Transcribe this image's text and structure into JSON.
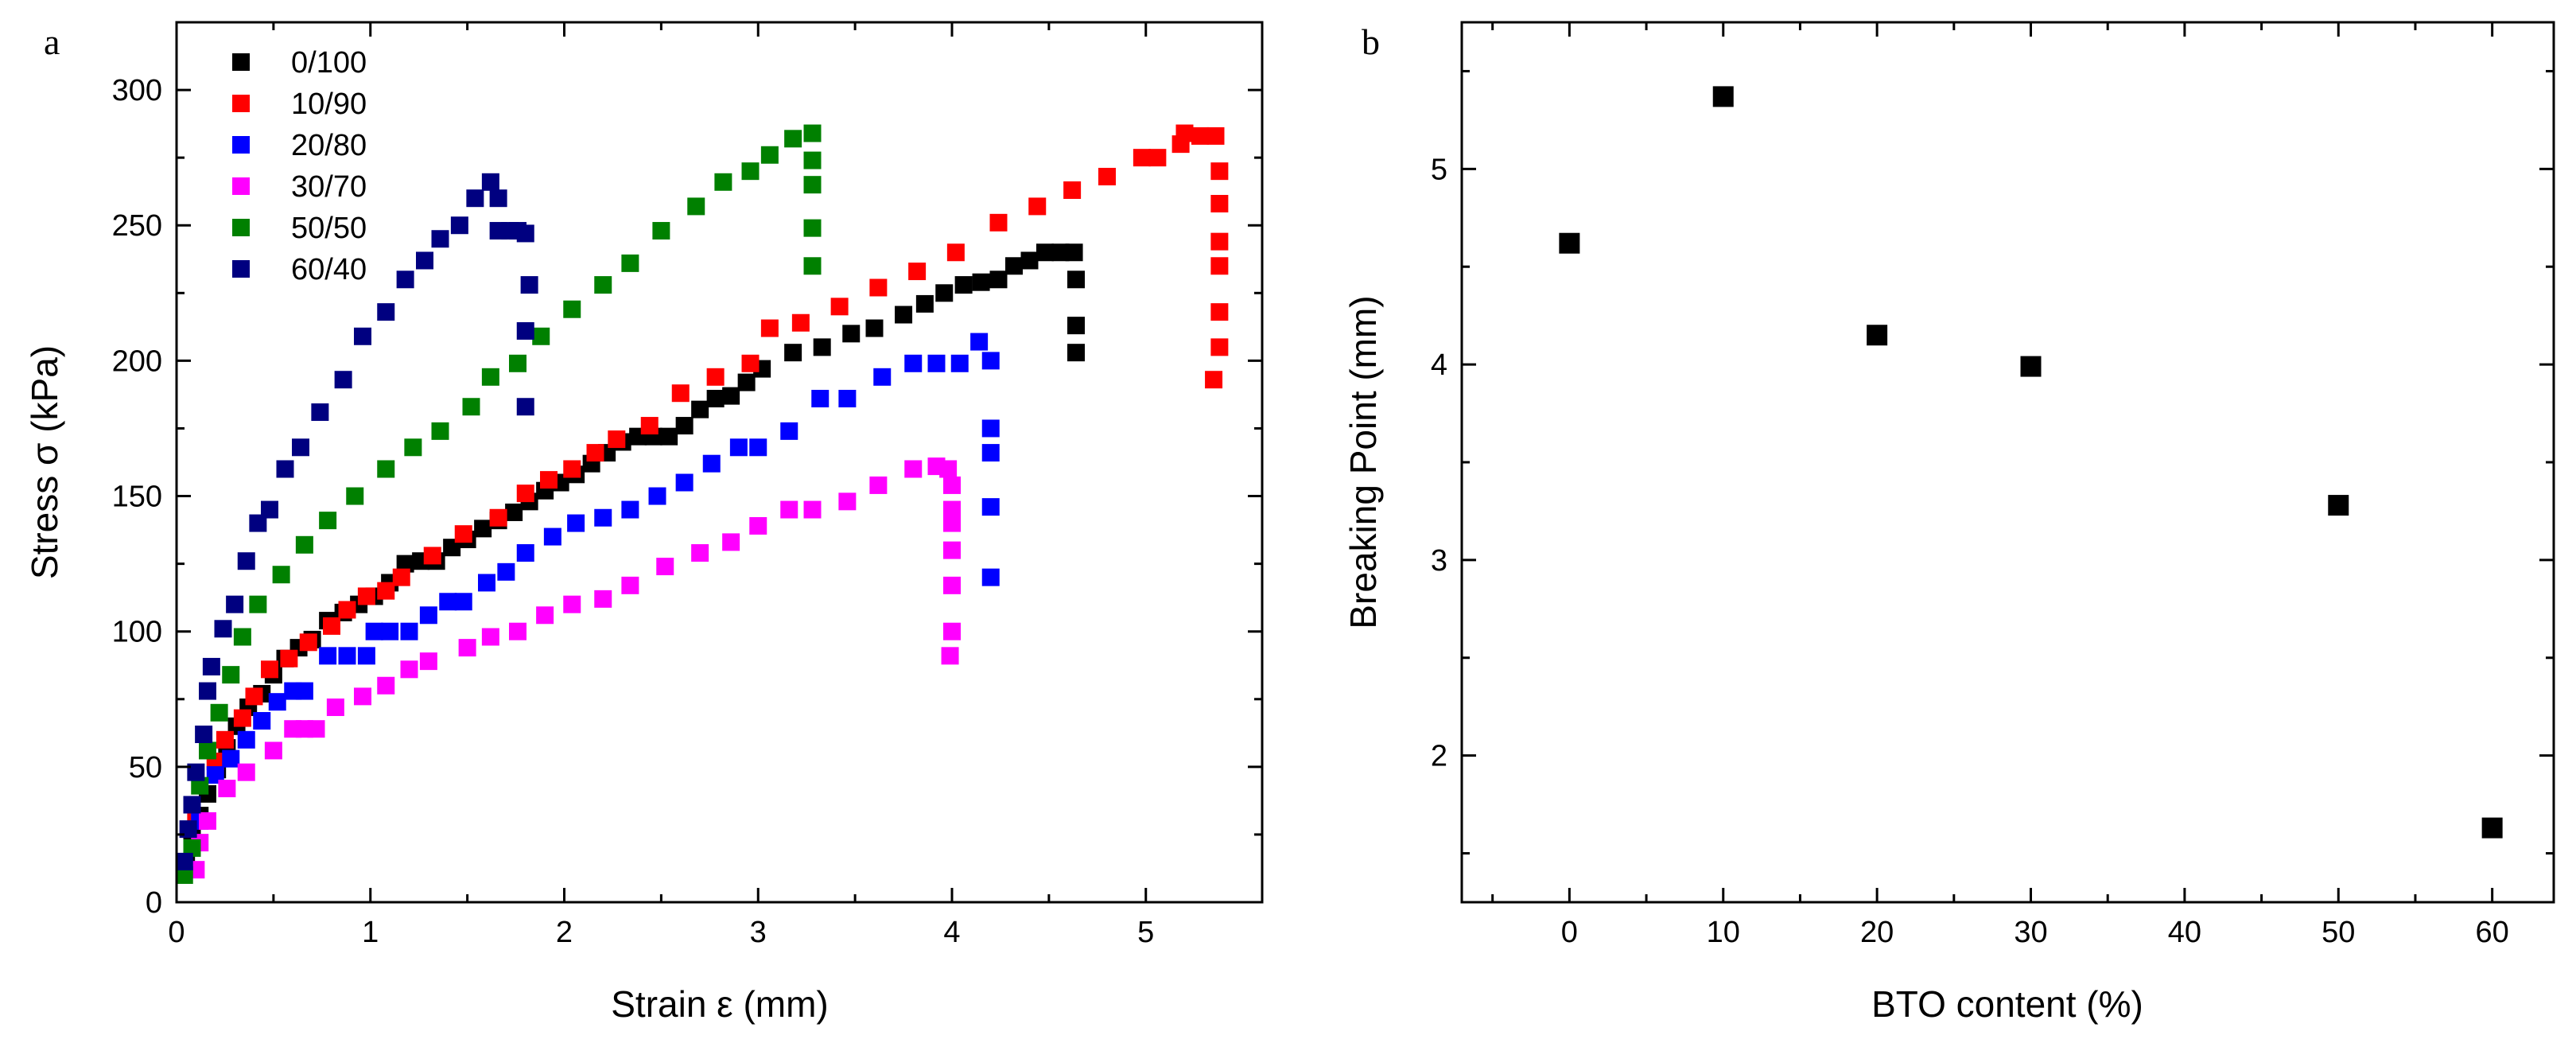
{
  "chart_data": [
    {
      "type": "scatter",
      "panel_label": "a",
      "title": "",
      "xlabel": "Strain ε (mm)",
      "ylabel": "Stress σ (kPa)",
      "xlim": [
        0,
        5.6
      ],
      "ylim": [
        0,
        325
      ],
      "xticks": [
        0,
        1,
        2,
        3,
        4,
        5
      ],
      "yticks": [
        0,
        50,
        100,
        150,
        200,
        250,
        300
      ],
      "legend_position": "top-left",
      "series": [
        {
          "name": "0/100",
          "color": "#000000",
          "points": [
            [
              0.05,
              15
            ],
            [
              0.08,
              24
            ],
            [
              0.12,
              32
            ],
            [
              0.16,
              40
            ],
            [
              0.21,
              49
            ],
            [
              0.26,
              57
            ],
            [
              0.31,
              65
            ],
            [
              0.37,
              72
            ],
            [
              0.44,
              77
            ],
            [
              0.5,
              84
            ],
            [
              0.56,
              90
            ],
            [
              0.63,
              94
            ],
            [
              0.7,
              97
            ],
            [
              0.78,
              104
            ],
            [
              0.86,
              107
            ],
            [
              0.94,
              110
            ],
            [
              1.02,
              113
            ],
            [
              1.1,
              118
            ],
            [
              1.18,
              125
            ],
            [
              1.26,
              126
            ],
            [
              1.34,
              126
            ],
            [
              1.42,
              131
            ],
            [
              1.5,
              134
            ],
            [
              1.58,
              138
            ],
            [
              1.66,
              141
            ],
            [
              1.74,
              144
            ],
            [
              1.82,
              148
            ],
            [
              1.9,
              152
            ],
            [
              1.98,
              155
            ],
            [
              2.06,
              158
            ],
            [
              2.14,
              162
            ],
            [
              2.22,
              166
            ],
            [
              2.3,
              170
            ],
            [
              2.38,
              172
            ],
            [
              2.46,
              172
            ],
            [
              2.54,
              172
            ],
            [
              2.62,
              176
            ],
            [
              2.7,
              182
            ],
            [
              2.78,
              186
            ],
            [
              2.86,
              187
            ],
            [
              2.94,
              192
            ],
            [
              3.02,
              197
            ],
            [
              3.18,
              203
            ],
            [
              3.33,
              205
            ],
            [
              3.48,
              210
            ],
            [
              3.6,
              212
            ],
            [
              3.75,
              217
            ],
            [
              3.86,
              221
            ],
            [
              3.96,
              225
            ],
            [
              4.06,
              228
            ],
            [
              4.15,
              229
            ],
            [
              4.24,
              230
            ],
            [
              4.32,
              235
            ],
            [
              4.4,
              237
            ],
            [
              4.48,
              240
            ],
            [
              4.56,
              240
            ],
            [
              4.63,
              240
            ],
            [
              4.64,
              230
            ],
            [
              4.64,
              213
            ],
            [
              4.64,
              203
            ]
          ]
        },
        {
          "name": "10/90",
          "color": "#ff0000",
          "points": [
            [
              0.1,
              30
            ],
            [
              0.2,
              52
            ],
            [
              0.25,
              60
            ],
            [
              0.34,
              68
            ],
            [
              0.4,
              76
            ],
            [
              0.48,
              86
            ],
            [
              0.58,
              90
            ],
            [
              0.68,
              96
            ],
            [
              0.8,
              102
            ],
            [
              0.88,
              108
            ],
            [
              0.98,
              113
            ],
            [
              1.08,
              115
            ],
            [
              1.16,
              120
            ],
            [
              1.32,
              128
            ],
            [
              1.48,
              136
            ],
            [
              1.66,
              142
            ],
            [
              1.8,
              151
            ],
            [
              1.92,
              156
            ],
            [
              2.04,
              160
            ],
            [
              2.16,
              166
            ],
            [
              2.27,
              171
            ],
            [
              2.44,
              176
            ],
            [
              2.6,
              188
            ],
            [
              2.78,
              194
            ],
            [
              2.96,
              199
            ],
            [
              3.06,
              212
            ],
            [
              3.22,
              214
            ],
            [
              3.42,
              220
            ],
            [
              3.62,
              227
            ],
            [
              3.82,
              233
            ],
            [
              4.02,
              240
            ],
            [
              4.24,
              251
            ],
            [
              4.44,
              257
            ],
            [
              4.62,
              263
            ],
            [
              4.8,
              268
            ],
            [
              4.98,
              275
            ],
            [
              5.06,
              275
            ],
            [
              5.18,
              280
            ],
            [
              5.2,
              284
            ],
            [
              5.28,
              283
            ],
            [
              5.36,
              283
            ],
            [
              5.38,
              270
            ],
            [
              5.38,
              258
            ],
            [
              5.38,
              244
            ],
            [
              5.38,
              235
            ],
            [
              5.38,
              218
            ],
            [
              5.38,
              205
            ],
            [
              5.35,
              193
            ]
          ]
        },
        {
          "name": "20/80",
          "color": "#0000ff",
          "points": [
            [
              0.12,
              30
            ],
            [
              0.2,
              47
            ],
            [
              0.28,
              53
            ],
            [
              0.36,
              60
            ],
            [
              0.44,
              67
            ],
            [
              0.52,
              74
            ],
            [
              0.6,
              78
            ],
            [
              0.66,
              78
            ],
            [
              0.78,
              91
            ],
            [
              0.88,
              91
            ],
            [
              0.98,
              91
            ],
            [
              1.02,
              100
            ],
            [
              1.1,
              100
            ],
            [
              1.2,
              100
            ],
            [
              1.3,
              106
            ],
            [
              1.4,
              111
            ],
            [
              1.48,
              111
            ],
            [
              1.6,
              118
            ],
            [
              1.7,
              122
            ],
            [
              1.8,
              129
            ],
            [
              1.94,
              135
            ],
            [
              2.06,
              140
            ],
            [
              2.2,
              142
            ],
            [
              2.34,
              145
            ],
            [
              2.48,
              150
            ],
            [
              2.62,
              155
            ],
            [
              2.76,
              162
            ],
            [
              2.9,
              168
            ],
            [
              3.0,
              168
            ],
            [
              3.16,
              174
            ],
            [
              3.32,
              186
            ],
            [
              3.46,
              186
            ],
            [
              3.64,
              194
            ],
            [
              3.8,
              199
            ],
            [
              3.92,
              199
            ],
            [
              4.04,
              199
            ],
            [
              4.14,
              207
            ],
            [
              4.2,
              200
            ],
            [
              4.2,
              175
            ],
            [
              4.2,
              166
            ],
            [
              4.2,
              146
            ],
            [
              4.2,
              120
            ]
          ]
        },
        {
          "name": "30/70",
          "color": "#ff00ff",
          "points": [
            [
              0.1,
              12
            ],
            [
              0.12,
              22
            ],
            [
              0.16,
              30
            ],
            [
              0.26,
              42
            ],
            [
              0.36,
              48
            ],
            [
              0.5,
              56
            ],
            [
              0.6,
              64
            ],
            [
              0.66,
              64
            ],
            [
              0.72,
              64
            ],
            [
              0.82,
              72
            ],
            [
              0.96,
              76
            ],
            [
              1.08,
              80
            ],
            [
              1.2,
              86
            ],
            [
              1.3,
              89
            ],
            [
              1.5,
              94
            ],
            [
              1.62,
              98
            ],
            [
              1.76,
              100
            ],
            [
              1.9,
              106
            ],
            [
              2.04,
              110
            ],
            [
              2.2,
              112
            ],
            [
              2.34,
              117
            ],
            [
              2.52,
              124
            ],
            [
              2.7,
              129
            ],
            [
              2.86,
              133
            ],
            [
              3.0,
              139
            ],
            [
              3.16,
              145
            ],
            [
              3.28,
              145
            ],
            [
              3.46,
              148
            ],
            [
              3.62,
              154
            ],
            [
              3.8,
              160
            ],
            [
              3.92,
              161
            ],
            [
              3.98,
              160
            ],
            [
              4.0,
              154
            ],
            [
              4.0,
              145
            ],
            [
              4.0,
              140
            ],
            [
              4.0,
              130
            ],
            [
              4.0,
              117
            ],
            [
              4.0,
              100
            ],
            [
              3.99,
              91
            ]
          ]
        },
        {
          "name": "50/50",
          "color": "#008000",
          "points": [
            [
              0.04,
              10
            ],
            [
              0.08,
              20
            ],
            [
              0.12,
              43
            ],
            [
              0.16,
              56
            ],
            [
              0.22,
              70
            ],
            [
              0.28,
              84
            ],
            [
              0.34,
              98
            ],
            [
              0.42,
              110
            ],
            [
              0.54,
              121
            ],
            [
              0.66,
              132
            ],
            [
              0.78,
              141
            ],
            [
              0.92,
              150
            ],
            [
              1.08,
              160
            ],
            [
              1.22,
              168
            ],
            [
              1.36,
              174
            ],
            [
              1.52,
              183
            ],
            [
              1.62,
              194
            ],
            [
              1.76,
              199
            ],
            [
              1.88,
              209
            ],
            [
              2.04,
              219
            ],
            [
              2.2,
              228
            ],
            [
              2.34,
              236
            ],
            [
              2.5,
              248
            ],
            [
              2.68,
              257
            ],
            [
              2.82,
              266
            ],
            [
              2.96,
              270
            ],
            [
              3.06,
              276
            ],
            [
              3.18,
              282
            ],
            [
              3.28,
              284
            ],
            [
              3.28,
              274
            ],
            [
              3.28,
              265
            ],
            [
              3.28,
              249
            ],
            [
              3.28,
              235
            ]
          ]
        },
        {
          "name": "60/40",
          "color": "#000080",
          "points": [
            [
              0.04,
              15
            ],
            [
              0.06,
              27
            ],
            [
              0.08,
              36
            ],
            [
              0.1,
              48
            ],
            [
              0.14,
              62
            ],
            [
              0.16,
              78
            ],
            [
              0.18,
              87
            ],
            [
              0.24,
              101
            ],
            [
              0.3,
              110
            ],
            [
              0.36,
              126
            ],
            [
              0.42,
              140
            ],
            [
              0.48,
              145
            ],
            [
              0.56,
              160
            ],
            [
              0.64,
              168
            ],
            [
              0.74,
              181
            ],
            [
              0.86,
              193
            ],
            [
              0.96,
              209
            ],
            [
              1.08,
              218
            ],
            [
              1.18,
              230
            ],
            [
              1.28,
              237
            ],
            [
              1.36,
              245
            ],
            [
              1.46,
              250
            ],
            [
              1.54,
              260
            ],
            [
              1.62,
              266
            ],
            [
              1.66,
              260
            ],
            [
              1.66,
              248
            ],
            [
              1.72,
              248
            ],
            [
              1.76,
              248
            ],
            [
              1.8,
              247
            ],
            [
              1.82,
              228
            ],
            [
              1.8,
              211
            ],
            [
              1.8,
              183
            ]
          ]
        }
      ]
    },
    {
      "type": "scatter",
      "panel_label": "b",
      "title": "",
      "xlabel": "BTO content (%)",
      "ylabel": "Breaking Point (mm)",
      "xlim": [
        -7,
        64
      ],
      "ylim": [
        1.25,
        5.75
      ],
      "xticks": [
        0,
        10,
        20,
        30,
        40,
        50,
        60
      ],
      "yticks": [
        2,
        3,
        4,
        5
      ],
      "series": [
        {
          "name": "Breaking Point",
          "color": "#000000",
          "points": [
            [
              0,
              4.62
            ],
            [
              10,
              5.37
            ],
            [
              20,
              4.15
            ],
            [
              30,
              3.99
            ],
            [
              50,
              3.28
            ],
            [
              60,
              1.63
            ]
          ]
        }
      ]
    }
  ]
}
